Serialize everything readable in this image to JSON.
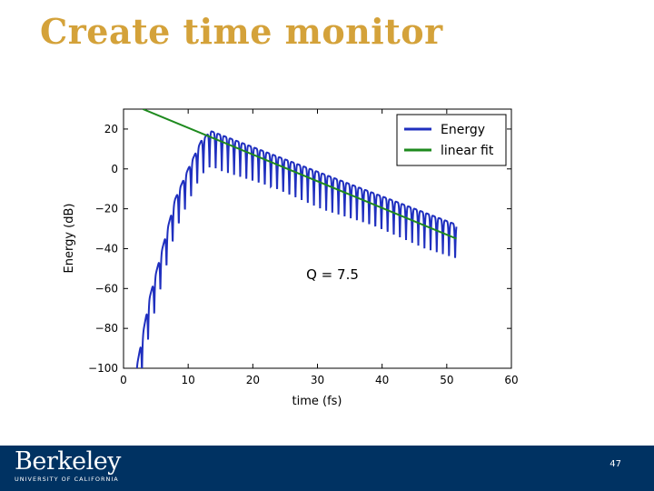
{
  "slide": {
    "title": "Create time monitor",
    "footer": {
      "logo_text": "Berkeley",
      "logo_subtext": "UNIVERSITY OF CALIFORNIA",
      "page_number": "47"
    },
    "colors": {
      "title": "#d4a23a",
      "footer_bg": "#003262"
    }
  },
  "chart_data": {
    "type": "line",
    "title": "",
    "xlabel": "time (fs)",
    "ylabel": "Energy (dB)",
    "xlim": [
      0,
      60
    ],
    "ylim": [
      -100,
      30
    ],
    "xticks": [
      0,
      10,
      20,
      30,
      40,
      50,
      60
    ],
    "yticks": [
      20,
      0,
      -20,
      -40,
      -60,
      -80,
      -100
    ],
    "xtick_labels": [
      "0",
      "10",
      "20",
      "30",
      "40",
      "50",
      "60"
    ],
    "ytick_labels": [
      "20",
      "0",
      "−20",
      "−40",
      "−60",
      "−80",
      "−100"
    ],
    "grid": false,
    "legend_position": "top-right",
    "annotation": "Q = 7.5",
    "series": [
      {
        "name": "Energy",
        "color": "#1f2fbf",
        "rise_envelope": [
          [
            2.0,
            -100
          ],
          [
            4.0,
            -65
          ],
          [
            6.0,
            -40
          ],
          [
            8.0,
            -15
          ],
          [
            10.0,
            0
          ],
          [
            12.0,
            14
          ],
          [
            13.5,
            19
          ]
        ],
        "period_fs": 0.95,
        "decay_start_fs": 13.5,
        "decay_end_fs": 51.5,
        "peak_at_end_db": -28,
        "dip_depth_db": 18,
        "x_end": 51.5
      },
      {
        "name": "linear fit",
        "color": "#1e8a1e",
        "x": [
          3,
          51.5
        ],
        "y": [
          30,
          -35
        ]
      }
    ]
  }
}
